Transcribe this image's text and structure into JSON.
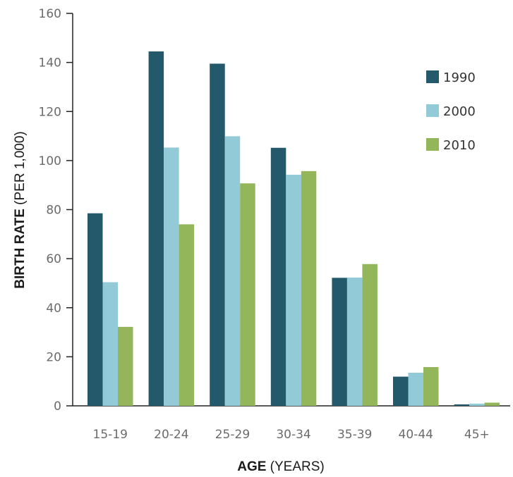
{
  "chart_data": {
    "type": "bar",
    "title": "",
    "xlabel_bold": "AGE",
    "xlabel_rest": " (YEARS)",
    "ylabel_bold": "BIRTH RATE",
    "ylabel_rest": " (PER 1,000)",
    "ylim": [
      0,
      160
    ],
    "yticks": [
      0,
      20,
      40,
      60,
      80,
      100,
      120,
      140,
      160
    ],
    "categories": [
      "15-19",
      "20-24",
      "25-29",
      "30-34",
      "35-39",
      "40-44",
      "45+"
    ],
    "series": [
      {
        "name": "1990",
        "color": "#23596a",
        "values": [
          78.5,
          144.5,
          139.5,
          105.2,
          52.2,
          11.9,
          0.6
        ]
      },
      {
        "name": "2000",
        "color": "#92cad7",
        "values": [
          50.4,
          105.3,
          109.9,
          94.2,
          52.3,
          13.5,
          0.9
        ]
      },
      {
        "name": "2010",
        "color": "#93b65a",
        "values": [
          32.2,
          74.0,
          90.7,
          95.7,
          57.8,
          15.8,
          1.3
        ]
      }
    ],
    "legend_position": "top-right",
    "grid": false
  }
}
